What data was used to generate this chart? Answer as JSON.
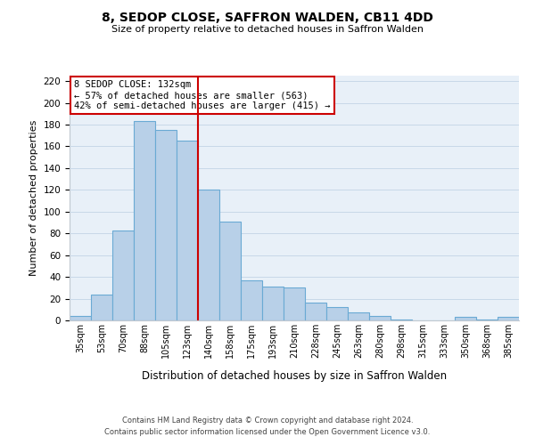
{
  "title": "8, SEDOP CLOSE, SAFFRON WALDEN, CB11 4DD",
  "subtitle": "Size of property relative to detached houses in Saffron Walden",
  "xlabel": "Distribution of detached houses by size in Saffron Walden",
  "ylabel": "Number of detached properties",
  "bar_labels": [
    "35sqm",
    "53sqm",
    "70sqm",
    "88sqm",
    "105sqm",
    "123sqm",
    "140sqm",
    "158sqm",
    "175sqm",
    "193sqm",
    "210sqm",
    "228sqm",
    "245sqm",
    "263sqm",
    "280sqm",
    "298sqm",
    "315sqm",
    "333sqm",
    "350sqm",
    "368sqm",
    "385sqm"
  ],
  "bar_values": [
    4,
    24,
    83,
    183,
    175,
    165,
    120,
    91,
    37,
    31,
    30,
    16,
    12,
    7,
    4,
    1,
    0,
    0,
    3,
    1,
    3
  ],
  "bar_color": "#b8d0e8",
  "bar_edge_color": "#6aaad4",
  "vline_color": "#cc0000",
  "ylim": [
    0,
    225
  ],
  "yticks": [
    0,
    20,
    40,
    60,
    80,
    100,
    120,
    140,
    160,
    180,
    200,
    220
  ],
  "annotation_title": "8 SEDOP CLOSE: 132sqm",
  "annotation_line1": "← 57% of detached houses are smaller (563)",
  "annotation_line2": "42% of semi-detached houses are larger (415) →",
  "annotation_box_color": "#ffffff",
  "annotation_box_edge": "#cc0000",
  "footer1": "Contains HM Land Registry data © Crown copyright and database right 2024.",
  "footer2": "Contains public sector information licensed under the Open Government Licence v3.0.",
  "bg_color": "#e8f0f8"
}
